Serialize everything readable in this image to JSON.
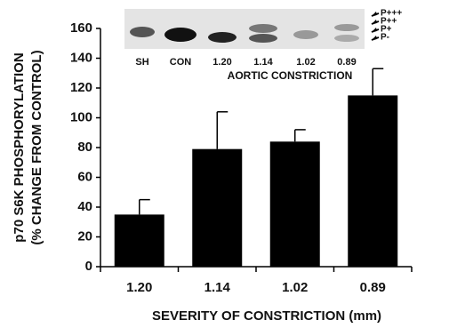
{
  "chart_data": {
    "type": "bar",
    "xlabel": "SEVERITY OF CONSTRICTION (mm)",
    "ylabel": [
      "p70 S6K PHOSPHORYLATION",
      "(% CHANGE FROM CONTROL)"
    ],
    "categories": [
      "1.20",
      "1.14",
      "1.02",
      "0.89"
    ],
    "values": [
      35,
      79,
      84,
      115
    ],
    "errors": [
      10,
      25,
      8,
      18
    ],
    "color": "#000000",
    "ylim": [
      0,
      160
    ],
    "yticks": [
      0,
      20,
      40,
      60,
      80,
      100,
      120,
      140,
      160
    ],
    "inset": {
      "lanes": [
        "SH",
        "CON",
        "1.20",
        "1.14",
        "1.02",
        "0.89"
      ],
      "caption": "AORTIC CONSTRICTION",
      "bands": [
        "P+++",
        "P++",
        "P+",
        "P-"
      ]
    }
  }
}
